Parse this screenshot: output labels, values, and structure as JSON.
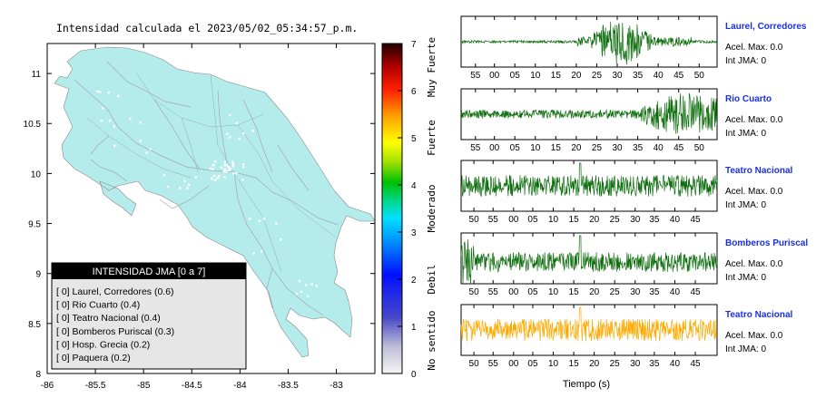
{
  "title": "Intensidad calculada el 2023/05/02_05:34:57_p.m.",
  "map": {
    "x_ticks": [
      "-86",
      "-85.5",
      "-85",
      "-84.5",
      "-84",
      "-83.5",
      "-83"
    ],
    "y_ticks": [
      "11",
      "10.5",
      "10",
      "9.5",
      "9",
      "8.5",
      "8"
    ]
  },
  "colorbar": {
    "ticks": [
      "7",
      "6",
      "5",
      "4",
      "3",
      "2",
      "1",
      "0"
    ],
    "levels": [
      "Muy Fuerte",
      "Fuerte",
      "Moderado",
      "Debil",
      "No sentido"
    ]
  },
  "legend": {
    "header": "INTENSIDAD JMA [0 a 7]",
    "items": [
      "[ 0] Laurel, Corredores (0.6)",
      "[ 0] Rio Cuarto (0.4)",
      "[ 0] Teatro Nacional (0.4)",
      "[ 0] Bomberos Puriscal (0.3)",
      "[ 0] Hosp. Grecia (0.2)",
      "[ 0] Paquera (0.2)"
    ]
  },
  "stations": [
    {
      "name": "Laurel, Corredores",
      "accel": "Acel. Max. 0.0",
      "jma": "Int JMA: 0",
      "ticks": [
        "55",
        "00",
        "05",
        "10",
        "15",
        "20",
        "25",
        "30",
        "35",
        "40",
        "45",
        "50"
      ]
    },
    {
      "name": "Rio Cuarto",
      "accel": "Acel. Max. 0.0",
      "jma": "Int JMA: 0",
      "ticks": [
        "55",
        "00",
        "05",
        "10",
        "15",
        "20",
        "25",
        "30",
        "35",
        "40",
        "45",
        "50"
      ]
    },
    {
      "name": "Teatro Nacional",
      "accel": "Acel. Max. 0.0",
      "jma": "Int JMA: 0",
      "ticks": [
        "50",
        "55",
        "00",
        "05",
        "10",
        "15",
        "20",
        "25",
        "30",
        "35",
        "40",
        "45"
      ]
    },
    {
      "name": "Bomberos Puriscal",
      "accel": "Acel. Max. 0.0",
      "jma": "Int JMA: 0",
      "ticks": [
        "50",
        "55",
        "00",
        "05",
        "10",
        "15",
        "20",
        "25",
        "30",
        "35",
        "40",
        "45"
      ]
    },
    {
      "name": "Teatro Nacional",
      "accel": "Acel. Max. 0.0",
      "jma": "Int JMA: 0",
      "ticks": [
        "50",
        "55",
        "00",
        "05",
        "10",
        "15",
        "20",
        "25",
        "30",
        "35",
        "40",
        "45"
      ]
    }
  ],
  "xlabel": "Tiempo (s)",
  "colors": {
    "land": "#b4ecec",
    "trace": "#0d6e0d",
    "trace_highlight": "#ffaa00",
    "station_name": "#1a2ee6"
  },
  "chart_data": [
    {
      "type": "heatmap",
      "xlim": [
        -86,
        -82.6
      ],
      "ylim": [
        8,
        11.3
      ],
      "x_ticks": [
        -86,
        -85.5,
        -85,
        -84.5,
        -84,
        -83.5,
        -83
      ],
      "y_ticks": [
        8,
        8.5,
        9,
        9.5,
        10,
        10.5,
        11
      ],
      "colorbar_range": [
        0,
        7
      ],
      "legend_placement": "bottom-left"
    },
    {
      "type": "line",
      "xlabel": "Tiempo (s)",
      "series": [
        {
          "name": "Laurel, Corredores"
        },
        {
          "name": "Rio Cuarto"
        },
        {
          "name": "Teatro Nacional"
        },
        {
          "name": "Bomberos Puriscal"
        },
        {
          "name": "Teatro Nacional"
        }
      ]
    }
  ]
}
